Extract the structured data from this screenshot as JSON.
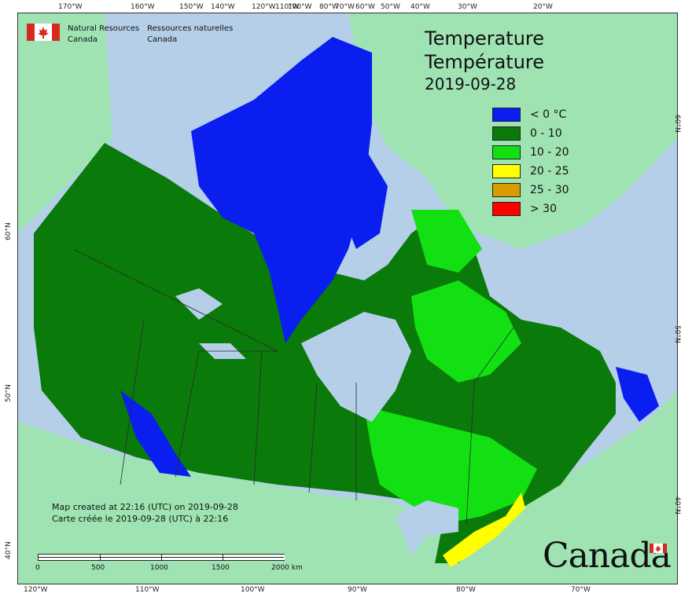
{
  "agency": {
    "en_line1": "Natural Resources",
    "en_line2": "Canada",
    "fr_line1": "Ressources naturelles",
    "fr_line2": "Canada"
  },
  "title": {
    "en": "Temperature",
    "fr": "Température",
    "date": "2019-09-28"
  },
  "legend": [
    {
      "label": "< 0 °C",
      "color": "#0a1ef0"
    },
    {
      "label": "0 - 10",
      "color": "#0a7a0a"
    },
    {
      "label": "10 - 20",
      "color": "#12e012"
    },
    {
      "label": "20 - 25",
      "color": "#ffff00"
    },
    {
      "label": "25 - 30",
      "color": "#d89c00"
    },
    {
      "label": "> 30",
      "color": "#ff0000"
    }
  ],
  "created": {
    "en": "Map created at 22:16 (UTC) on 2019-09-28",
    "fr": "Carte créée le 2019-09-28 (UTC) à 22:16"
  },
  "scale": {
    "labels": [
      "0",
      "500",
      "1000",
      "1500",
      "2000 km"
    ]
  },
  "axes": {
    "top": [
      "170°W",
      "160°W",
      "150°W",
      "140°W",
      "120°W",
      "110°W",
      "100°W",
      "80°W",
      "70°W",
      "60°W",
      "50°W",
      "40°W",
      "30°W",
      "20°W"
    ],
    "bottom": [
      "120°W",
      "110°W",
      "100°W",
      "90°W",
      "80°W",
      "70°W"
    ],
    "left": [
      "60°N",
      "50°N",
      "40°N"
    ],
    "right": [
      "60°N",
      "50°N",
      "40°N"
    ]
  },
  "wordmark": "Canada",
  "colors": {
    "ocean": "#b5cfe9",
    "foreign_land": "#9fe3b3",
    "lakes": "#b5cfe9"
  }
}
